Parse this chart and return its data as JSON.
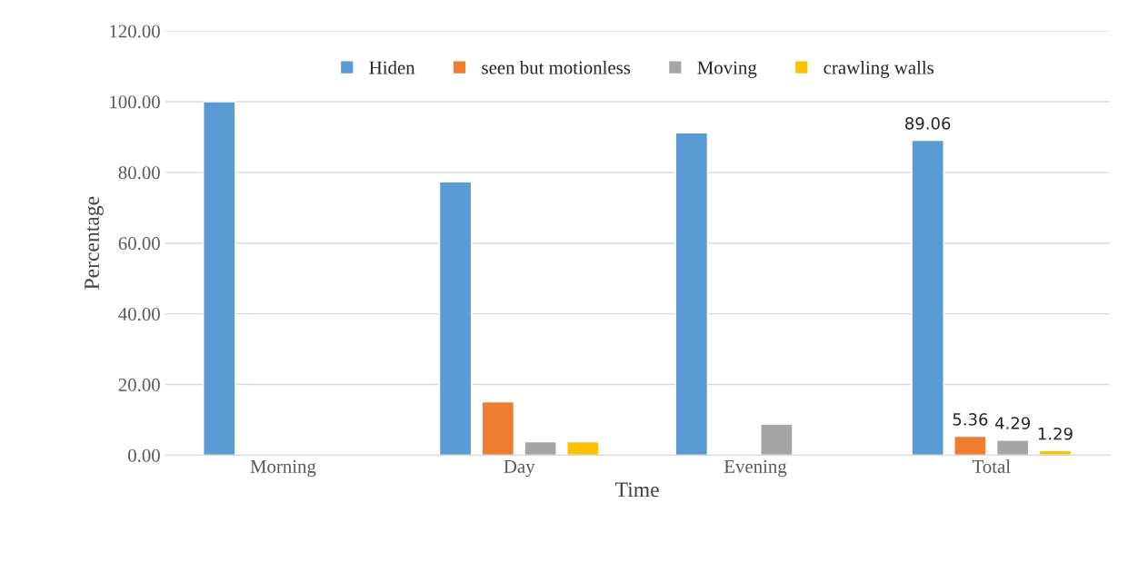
{
  "chart_data": {
    "type": "bar",
    "xlabel": "Time",
    "ylabel": "Percentage",
    "categories": [
      "Morning",
      "Day",
      "Evening",
      "Total"
    ],
    "series": [
      {
        "name": "Hiden",
        "color": "#5b9bd5",
        "values": [
          100,
          77.3,
          91.2,
          89.06
        ],
        "value_labels": [
          null,
          null,
          null,
          "89.06"
        ]
      },
      {
        "name": "seen but motionless",
        "color": "#ed7d31",
        "values": [
          null,
          15.1,
          null,
          5.36
        ],
        "value_labels": [
          null,
          null,
          null,
          "5.36"
        ]
      },
      {
        "name": "Moving",
        "color": "#a5a5a5",
        "values": [
          null,
          3.8,
          8.8,
          4.29
        ],
        "value_labels": [
          null,
          null,
          null,
          "4.29"
        ]
      },
      {
        "name": "crawling walls",
        "color": "#ffc000",
        "values": [
          null,
          3.8,
          null,
          1.29
        ],
        "value_labels": [
          null,
          null,
          null,
          "1.29"
        ]
      }
    ],
    "ylim": [
      0,
      120
    ],
    "yticks": [
      {
        "value": 0,
        "label": "0.00"
      },
      {
        "value": 20,
        "label": "20.00"
      },
      {
        "value": 40,
        "label": "40.00"
      },
      {
        "value": 60,
        "label": "60.00"
      },
      {
        "value": 80,
        "label": "80.00"
      },
      {
        "value": 100,
        "label": "100.00"
      },
      {
        "value": 120,
        "label": "120.00"
      }
    ],
    "grid": "y",
    "legend": "top"
  }
}
